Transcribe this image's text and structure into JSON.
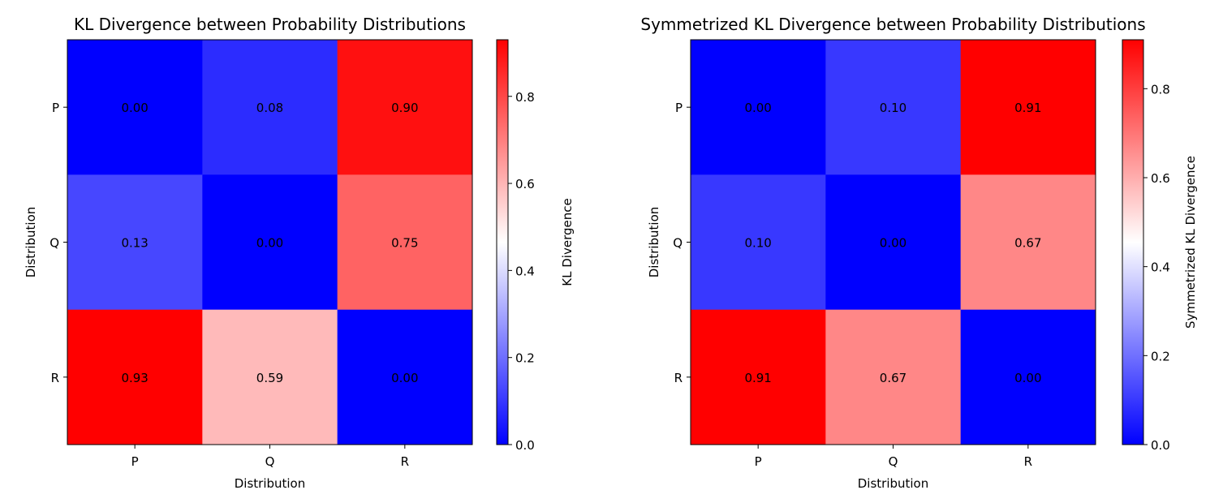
{
  "chart_data": [
    {
      "type": "heatmap",
      "title": "KL Divergence between Probability Distributions",
      "xlabel": "Distribution",
      "ylabel": "Distribution",
      "x_categories": [
        "P",
        "Q",
        "R"
      ],
      "y_categories": [
        "P",
        "Q",
        "R"
      ],
      "values": [
        [
          0.0,
          0.08,
          0.9
        ],
        [
          0.13,
          0.0,
          0.75
        ],
        [
          0.93,
          0.59,
          0.0
        ]
      ],
      "cell_labels": [
        [
          "0.00",
          "0.08",
          "0.90"
        ],
        [
          "0.13",
          "0.00",
          "0.75"
        ],
        [
          "0.93",
          "0.59",
          "0.00"
        ]
      ],
      "colormap": "bwr",
      "colormap_colors": [
        "#0000ff",
        "#ffffff",
        "#ff0000"
      ],
      "vmin": 0.0,
      "vmax": 0.93,
      "colorbar_label": "KL Divergence",
      "colorbar_ticks": [
        0.0,
        0.2,
        0.4,
        0.6,
        0.8
      ],
      "colorbar_tick_labels": [
        "0.0",
        "0.2",
        "0.4",
        "0.6",
        "0.8"
      ]
    },
    {
      "type": "heatmap",
      "title": "Symmetrized KL Divergence between Probability Distributions",
      "xlabel": "Distribution",
      "ylabel": "Distribution",
      "x_categories": [
        "P",
        "Q",
        "R"
      ],
      "y_categories": [
        "P",
        "Q",
        "R"
      ],
      "values": [
        [
          0.0,
          0.1,
          0.91
        ],
        [
          0.1,
          0.0,
          0.67
        ],
        [
          0.91,
          0.67,
          0.0
        ]
      ],
      "cell_labels": [
        [
          "0.00",
          "0.10",
          "0.91"
        ],
        [
          "0.10",
          "0.00",
          "0.67"
        ],
        [
          "0.91",
          "0.67",
          "0.00"
        ]
      ],
      "colormap": "bwr",
      "colormap_colors": [
        "#0000ff",
        "#ffffff",
        "#ff0000"
      ],
      "vmin": 0.0,
      "vmax": 0.91,
      "colorbar_label": "Symmetrized KL Divergence",
      "colorbar_ticks": [
        0.0,
        0.2,
        0.4,
        0.6,
        0.8
      ],
      "colorbar_tick_labels": [
        "0.0",
        "0.2",
        "0.4",
        "0.6",
        "0.8"
      ]
    }
  ]
}
